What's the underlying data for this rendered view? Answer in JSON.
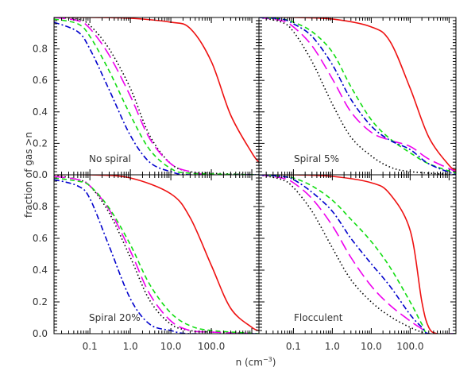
{
  "chart_data": {
    "type": "line",
    "xlabel": "n (cm",
    "xlabel_sup": "−3",
    "xlabel_close": ")",
    "ylabel": "fraction of gas >n",
    "x_scale": "log",
    "xlim": [
      0.013,
      1500
    ],
    "ylim": [
      0,
      1
    ],
    "x_ticks": [
      0.1,
      1.0,
      10.0,
      100.0
    ],
    "x_tick_labels": [
      "0.1",
      "1.0",
      "10.0",
      "100.0"
    ],
    "y_ticks": [
      0.0,
      0.2,
      0.4,
      0.6,
      0.8
    ],
    "y_tick_labels": [
      "0.0",
      "0.2",
      "0.4",
      "0.6",
      "0.8"
    ],
    "grid": false,
    "legend": "none",
    "line_styles": [
      {
        "color": "#ee1111",
        "dash": ""
      },
      {
        "color": "#000000",
        "dash": "1.5,3"
      },
      {
        "color": "#ee00ee",
        "dash": "14,6"
      },
      {
        "color": "#11dd11",
        "dash": "6,4"
      },
      {
        "color": "#0000cc",
        "dash": "7,3,2,3"
      }
    ],
    "panels": [
      {
        "label": "No spiral",
        "series": [
          {
            "x": [
              0.013,
              0.1,
              1,
              10,
              30,
              100,
              300,
              1000,
              1500
            ],
            "y": [
              1.0,
              1.0,
              0.995,
              0.97,
              0.93,
              0.72,
              0.38,
              0.14,
              0.08
            ]
          },
          {
            "x": [
              0.013,
              0.05,
              0.1,
              0.3,
              1,
              3,
              10,
              30,
              100,
              1500
            ],
            "y": [
              1.0,
              0.99,
              0.95,
              0.8,
              0.55,
              0.25,
              0.07,
              0.02,
              0.01,
              0.0
            ]
          },
          {
            "x": [
              0.013,
              0.05,
              0.1,
              0.3,
              1,
              3,
              10,
              30,
              100,
              1500
            ],
            "y": [
              1.0,
              0.98,
              0.93,
              0.76,
              0.5,
              0.23,
              0.07,
              0.02,
              0.0,
              0.0
            ]
          },
          {
            "x": [
              0.013,
              0.05,
              0.1,
              0.3,
              1,
              3,
              10,
              30,
              1500
            ],
            "y": [
              0.99,
              0.96,
              0.88,
              0.66,
              0.38,
              0.16,
              0.04,
              0.01,
              0.0
            ]
          },
          {
            "x": [
              0.013,
              0.05,
              0.1,
              0.3,
              1,
              3,
              10,
              30,
              1500
            ],
            "y": [
              0.97,
              0.91,
              0.8,
              0.54,
              0.25,
              0.08,
              0.02,
              0.0,
              0.0
            ]
          }
        ]
      },
      {
        "label": "Spiral 5%",
        "series": [
          {
            "x": [
              0.013,
              0.1,
              1,
              10,
              30,
              100,
              300,
              1000,
              1500
            ],
            "y": [
              1.0,
              1.0,
              0.99,
              0.94,
              0.85,
              0.55,
              0.24,
              0.06,
              0.03
            ]
          },
          {
            "x": [
              0.013,
              0.05,
              0.1,
              0.3,
              1,
              3,
              10,
              30,
              100,
              1500
            ],
            "y": [
              1.0,
              0.97,
              0.91,
              0.72,
              0.45,
              0.24,
              0.12,
              0.05,
              0.02,
              0.0
            ]
          },
          {
            "x": [
              0.013,
              0.05,
              0.1,
              0.3,
              1,
              3,
              10,
              30,
              100,
              300,
              1500
            ],
            "y": [
              1.0,
              0.98,
              0.94,
              0.82,
              0.61,
              0.4,
              0.27,
              0.22,
              0.18,
              0.1,
              0.02
            ]
          },
          {
            "x": [
              0.013,
              0.05,
              0.1,
              0.3,
              1,
              3,
              10,
              30,
              100,
              300,
              1500
            ],
            "y": [
              1.0,
              0.99,
              0.97,
              0.91,
              0.78,
              0.56,
              0.35,
              0.23,
              0.14,
              0.07,
              0.01
            ]
          },
          {
            "x": [
              0.013,
              0.05,
              0.1,
              0.3,
              1,
              3,
              10,
              30,
              100,
              300,
              1500
            ],
            "y": [
              1.0,
              0.99,
              0.96,
              0.88,
              0.7,
              0.48,
              0.31,
              0.22,
              0.16,
              0.07,
              0.0
            ]
          }
        ]
      },
      {
        "label": "Spiral 20%",
        "series": [
          {
            "x": [
              0.013,
              0.1,
              1,
              10,
              30,
              100,
              300,
              1000,
              1500
            ],
            "y": [
              1.0,
              1.0,
              0.98,
              0.88,
              0.73,
              0.43,
              0.16,
              0.04,
              0.02
            ]
          },
          {
            "x": [
              0.013,
              0.05,
              0.1,
              0.3,
              1,
              3,
              10,
              30,
              100,
              1500
            ],
            "y": [
              1.0,
              0.97,
              0.93,
              0.76,
              0.48,
              0.21,
              0.06,
              0.02,
              0.01,
              0.0
            ]
          },
          {
            "x": [
              0.013,
              0.05,
              0.1,
              0.3,
              1,
              3,
              10,
              30,
              100,
              1500
            ],
            "y": [
              0.99,
              0.97,
              0.93,
              0.78,
              0.52,
              0.25,
              0.08,
              0.02,
              0.01,
              0.0
            ]
          },
          {
            "x": [
              0.013,
              0.05,
              0.1,
              0.3,
              1,
              3,
              10,
              30,
              100,
              1500
            ],
            "y": [
              0.98,
              0.96,
              0.93,
              0.79,
              0.56,
              0.31,
              0.13,
              0.05,
              0.02,
              0.0
            ]
          },
          {
            "x": [
              0.013,
              0.05,
              0.1,
              0.3,
              1,
              3,
              10,
              30,
              1500
            ],
            "y": [
              0.97,
              0.93,
              0.85,
              0.55,
              0.22,
              0.06,
              0.02,
              0.0,
              0.0
            ]
          }
        ]
      },
      {
        "label": "Flocculent",
        "series": [
          {
            "x": [
              0.013,
              0.1,
              1,
              10,
              30,
              100,
              200,
              300,
              500,
              1500
            ],
            "y": [
              1.0,
              1.0,
              0.99,
              0.95,
              0.88,
              0.65,
              0.2,
              0.04,
              0.0,
              0.0
            ]
          },
          {
            "x": [
              0.013,
              0.05,
              0.1,
              0.3,
              1,
              3,
              10,
              30,
              100,
              300,
              1500
            ],
            "y": [
              1.0,
              0.97,
              0.92,
              0.77,
              0.54,
              0.34,
              0.2,
              0.11,
              0.04,
              0.0,
              0.0
            ]
          },
          {
            "x": [
              0.013,
              0.05,
              0.1,
              0.3,
              1,
              3,
              10,
              30,
              100,
              200,
              300,
              1500
            ],
            "y": [
              1.0,
              0.98,
              0.95,
              0.85,
              0.68,
              0.48,
              0.3,
              0.18,
              0.08,
              0.03,
              0.0,
              0.0
            ]
          },
          {
            "x": [
              0.013,
              0.05,
              0.1,
              0.3,
              1,
              3,
              10,
              30,
              100,
              200,
              300,
              1500
            ],
            "y": [
              1.0,
              0.99,
              0.98,
              0.93,
              0.84,
              0.72,
              0.58,
              0.42,
              0.2,
              0.06,
              0.0,
              0.0
            ]
          },
          {
            "x": [
              0.013,
              0.05,
              0.1,
              0.3,
              1,
              3,
              10,
              30,
              100,
              200,
              300,
              1500
            ],
            "y": [
              1.0,
              0.99,
              0.97,
              0.89,
              0.77,
              0.6,
              0.44,
              0.3,
              0.12,
              0.04,
              0.0,
              0.0
            ]
          }
        ]
      }
    ]
  }
}
